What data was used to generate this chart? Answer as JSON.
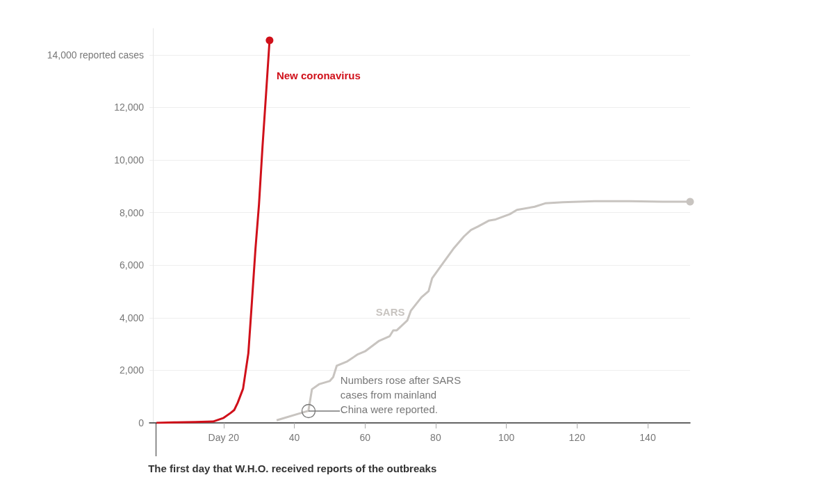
{
  "chart_data": {
    "type": "line",
    "annotations": [
      {
        "text": "Numbers rose after SARS cases from mainland China were reported.",
        "x": 44,
        "y": 460
      }
    ],
    "series": [
      {
        "name": "New coronavirus",
        "color": "#d0101a",
        "x": [
          1,
          6,
          12,
          17,
          20,
          22,
          23,
          24,
          25.5,
          27,
          28,
          29,
          30,
          31,
          32,
          33
        ],
        "values": [
          0,
          20,
          30,
          50,
          190,
          380,
          490,
          770,
          1300,
          2650,
          4600,
          6600,
          8300,
          10500,
          12500,
          14550
        ]
      },
      {
        "name": "SARS",
        "color": "#c8c4c0",
        "x": [
          35,
          42,
          44,
          45,
          47,
          50,
          51,
          52,
          55,
          58,
          60,
          64,
          67,
          68,
          69,
          72,
          73,
          76,
          78,
          79,
          82,
          85,
          88,
          90,
          92,
          95,
          97,
          101,
          103,
          108,
          111,
          116,
          125,
          135,
          144,
          152
        ],
        "values": [
          100,
          380,
          460,
          1280,
          1470,
          1590,
          1740,
          2170,
          2340,
          2610,
          2720,
          3120,
          3300,
          3520,
          3520,
          3900,
          4270,
          4780,
          5010,
          5500,
          6060,
          6620,
          7090,
          7340,
          7470,
          7690,
          7740,
          7940,
          8100,
          8220,
          8350,
          8390,
          8430,
          8430,
          8410,
          8410
        ]
      }
    ],
    "xlim": [
      -1,
      152
    ],
    "xticks": [
      {
        "value": 20,
        "label": "Day 20"
      },
      40,
      60,
      80,
      100,
      120,
      140
    ],
    "ylim": [
      0,
      15000
    ],
    "yticks": [
      {
        "value": 0,
        "label": "0"
      },
      {
        "value": 2000,
        "label": "2,000"
      },
      {
        "value": 4000,
        "label": "4,000"
      },
      {
        "value": 6000,
        "label": "6,000"
      },
      {
        "value": 8000,
        "label": "8,000"
      },
      {
        "value": 10000,
        "label": "10,000"
      },
      {
        "value": 12000,
        "label": "12,000"
      },
      {
        "value": 14000,
        "label": "14,000 reported cases"
      }
    ],
    "ref_lines": [
      {
        "axis": "x",
        "value": 1,
        "label": "The first day that W.H.O. received reports of the outbreaks",
        "color": "#333333"
      }
    ],
    "grid": "y",
    "legend": false
  }
}
